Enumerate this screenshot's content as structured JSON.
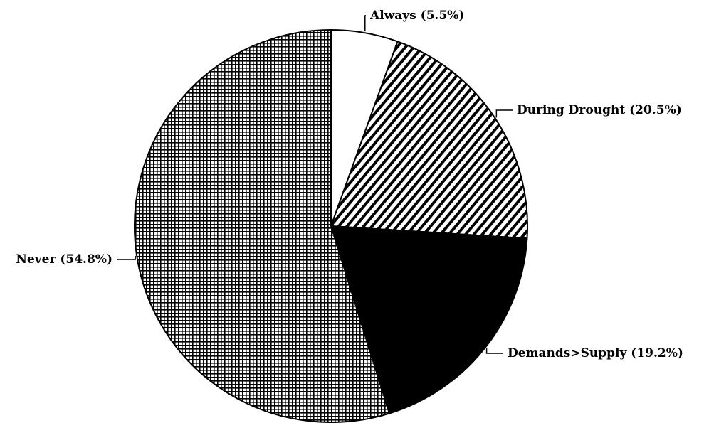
{
  "chart_data": {
    "type": "pie",
    "categories": [
      "Always",
      "During Drought",
      "Demands>Supply",
      "Never"
    ],
    "values": [
      5.5,
      20.5,
      19.2,
      54.8
    ],
    "value_labels": [
      "(5.5%)",
      "(20.5%)",
      "(19.2%)",
      "(54.8%)"
    ],
    "colors": [
      "#ffffff",
      "#000000",
      "#000000",
      "#000000"
    ],
    "patterns": [
      "solid",
      "diagonal",
      "solid",
      "grid"
    ],
    "start_angle": 0,
    "direction": "clockwise"
  }
}
